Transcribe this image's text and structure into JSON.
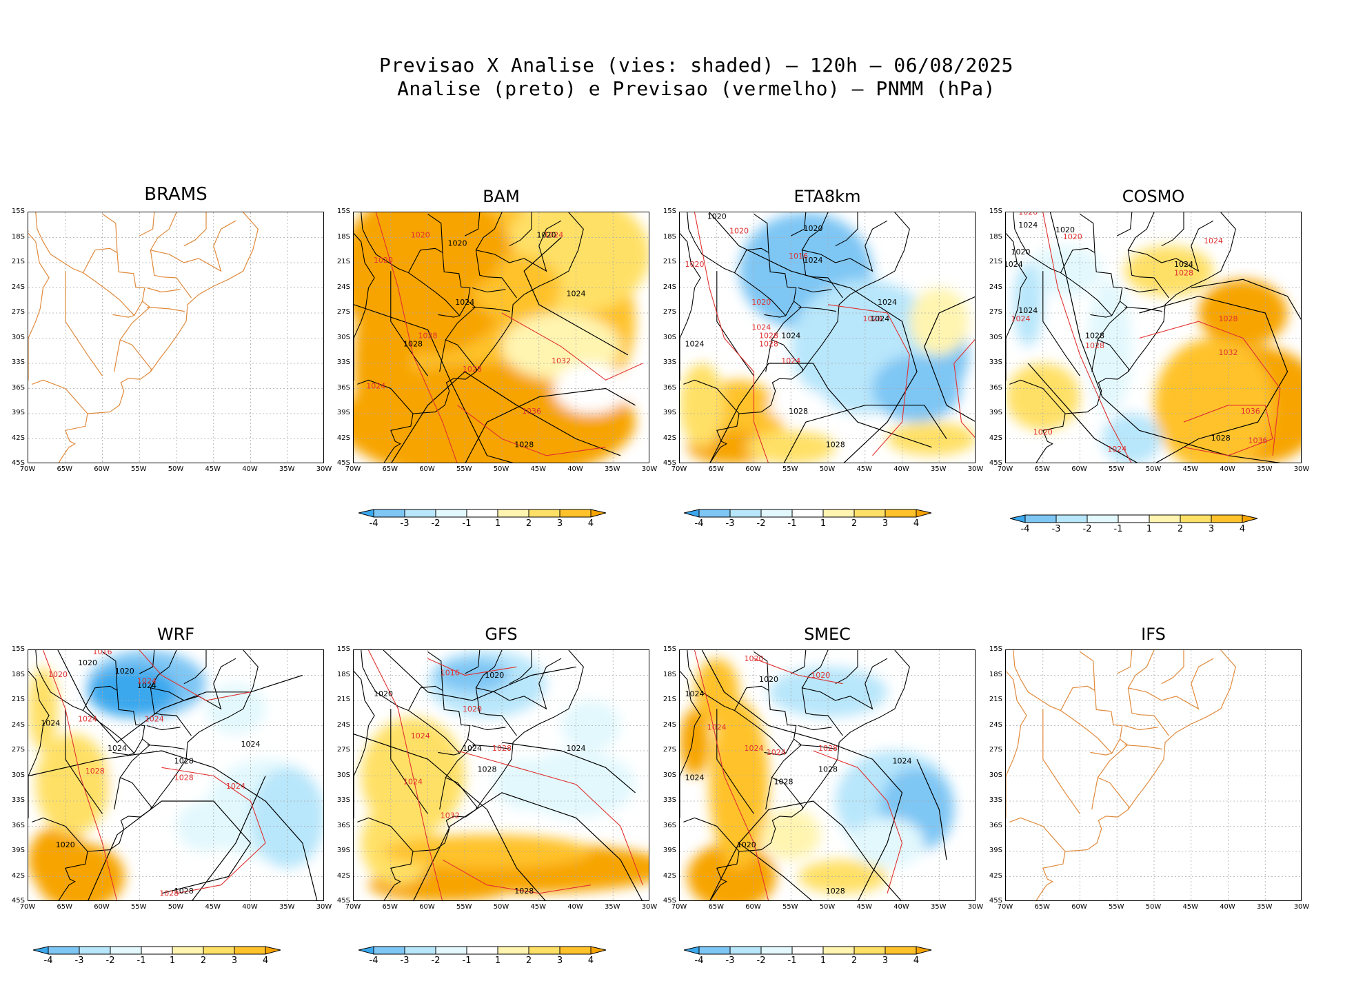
{
  "header": {
    "line1": "Previsao X Analise (vies: shaded) – 120h – 06/08/2025",
    "line2": "Analise (preto) e Previsao (vermelho) – PNMM (hPa)"
  },
  "axes": {
    "lat_labels": [
      "15S",
      "18S",
      "21S",
      "24S",
      "27S",
      "30S",
      "33S",
      "36S",
      "39S",
      "42S",
      "45S"
    ],
    "lon_labels": [
      "70W",
      "65W",
      "60W",
      "55W",
      "50W",
      "45W",
      "40W",
      "35W",
      "30W"
    ]
  },
  "colorbar": {
    "labels": [
      "-4",
      "-3",
      "-2",
      "-1",
      "1",
      "2",
      "3",
      "4"
    ],
    "colors": [
      "#3aa8ee",
      "#7ec6f4",
      "#b8e6fb",
      "#e2f8fd",
      "#ffffff",
      "#fff4b0",
      "#ffe066",
      "#ffc22a",
      "#f7a400"
    ]
  },
  "colors": {
    "coast": "#e08a3c",
    "analysis": "#000000",
    "forecast": "#e03030",
    "grid": "#aaaaaa"
  },
  "panels": [
    {
      "name": "BRAMS",
      "has_data": false,
      "contours": []
    },
    {
      "name": "BAM",
      "has_data": true,
      "contours": [
        {
          "label": "1020",
          "kind": "a"
        },
        {
          "label": "1024",
          "kind": "a"
        },
        {
          "label": "1028",
          "kind": "a"
        },
        {
          "label": "1024",
          "kind": "a"
        },
        {
          "label": "1028",
          "kind": "f"
        },
        {
          "label": "1032",
          "kind": "f"
        },
        {
          "label": "1036",
          "kind": "f"
        },
        {
          "label": "1028",
          "kind": "a"
        },
        {
          "label": "1020",
          "kind": "f"
        },
        {
          "label": "1020",
          "kind": "f"
        },
        {
          "label": "1024",
          "kind": "f"
        },
        {
          "label": "1028",
          "kind": "f"
        },
        {
          "label": "1024",
          "kind": "f"
        },
        {
          "label": "1020",
          "kind": "a"
        }
      ]
    },
    {
      "name": "ETA8km",
      "has_data": true,
      "contours": [
        {
          "label": "1020",
          "kind": "a"
        },
        {
          "label": "1020",
          "kind": "a"
        },
        {
          "label": "1020",
          "kind": "f"
        },
        {
          "label": "1020",
          "kind": "f"
        },
        {
          "label": "1024",
          "kind": "a"
        },
        {
          "label": "1016",
          "kind": "f"
        },
        {
          "label": "1024",
          "kind": "a"
        },
        {
          "label": "1024",
          "kind": "f"
        },
        {
          "label": "1020",
          "kind": "f"
        },
        {
          "label": "1024",
          "kind": "a"
        },
        {
          "label": "1028",
          "kind": "a"
        },
        {
          "label": "1028",
          "kind": "f"
        },
        {
          "label": "1024",
          "kind": "f"
        },
        {
          "label": "1024",
          "kind": "a"
        },
        {
          "label": "1028",
          "kind": "a"
        },
        {
          "label": "1020",
          "kind": "f"
        },
        {
          "label": "1024",
          "kind": "a"
        },
        {
          "label": "1028",
          "kind": "f"
        }
      ]
    },
    {
      "name": "COSMO",
      "has_data": true,
      "contours": [
        {
          "label": "1020",
          "kind": "f"
        },
        {
          "label": "1024",
          "kind": "a"
        },
        {
          "label": "1020",
          "kind": "a"
        },
        {
          "label": "1020",
          "kind": "f"
        },
        {
          "label": "1024",
          "kind": "f"
        },
        {
          "label": "1024",
          "kind": "a"
        },
        {
          "label": "1028",
          "kind": "f"
        },
        {
          "label": "1024",
          "kind": "a"
        },
        {
          "label": "1028",
          "kind": "a"
        },
        {
          "label": "1028",
          "kind": "f"
        },
        {
          "label": "1032",
          "kind": "f"
        },
        {
          "label": "1036",
          "kind": "f"
        },
        {
          "label": "1028",
          "kind": "a"
        },
        {
          "label": "1036",
          "kind": "f"
        },
        {
          "label": "1020",
          "kind": "f"
        },
        {
          "label": "1024",
          "kind": "f"
        },
        {
          "label": "1024",
          "kind": "f"
        },
        {
          "label": "1020",
          "kind": "a"
        },
        {
          "label": "1024",
          "kind": "a"
        },
        {
          "label": "1028",
          "kind": "f"
        }
      ]
    },
    {
      "name": "WRF",
      "has_data": true,
      "contours": [
        {
          "label": "1016",
          "kind": "f"
        },
        {
          "label": "1020",
          "kind": "a"
        },
        {
          "label": "1020",
          "kind": "f"
        },
        {
          "label": "1020",
          "kind": "a"
        },
        {
          "label": "1024",
          "kind": "a"
        },
        {
          "label": "1024",
          "kind": "f"
        },
        {
          "label": "1024",
          "kind": "a"
        },
        {
          "label": "1024",
          "kind": "f"
        },
        {
          "label": "1024",
          "kind": "a"
        },
        {
          "label": "1028",
          "kind": "a"
        },
        {
          "label": "1028",
          "kind": "f"
        },
        {
          "label": "1028",
          "kind": "f"
        },
        {
          "label": "1024",
          "kind": "f"
        },
        {
          "label": "1024",
          "kind": "f"
        },
        {
          "label": "1020",
          "kind": "a"
        },
        {
          "label": "1028",
          "kind": "a"
        },
        {
          "label": "1028",
          "kind": "f"
        },
        {
          "label": "1024",
          "kind": "a"
        }
      ]
    },
    {
      "name": "GFS",
      "has_data": true,
      "contours": [
        {
          "label": "1020",
          "kind": "a"
        },
        {
          "label": "1016",
          "kind": "f"
        },
        {
          "label": "1020",
          "kind": "a"
        },
        {
          "label": "1020",
          "kind": "f"
        },
        {
          "label": "1024",
          "kind": "f"
        },
        {
          "label": "1024",
          "kind": "a"
        },
        {
          "label": "1028",
          "kind": "a"
        },
        {
          "label": "1028",
          "kind": "f"
        },
        {
          "label": "1024",
          "kind": "a"
        },
        {
          "label": "1024",
          "kind": "f"
        },
        {
          "label": "1032",
          "kind": "f"
        },
        {
          "label": "1028",
          "kind": "a"
        }
      ]
    },
    {
      "name": "SMEC",
      "has_data": true,
      "contours": [
        {
          "label": "1020",
          "kind": "f"
        },
        {
          "label": "1020",
          "kind": "a"
        },
        {
          "label": "1020",
          "kind": "f"
        },
        {
          "label": "1024",
          "kind": "a"
        },
        {
          "label": "1024",
          "kind": "f"
        },
        {
          "label": "1024",
          "kind": "f"
        },
        {
          "label": "1024",
          "kind": "a"
        },
        {
          "label": "1028",
          "kind": "a"
        },
        {
          "label": "1028",
          "kind": "f"
        },
        {
          "label": "1024",
          "kind": "a"
        },
        {
          "label": "1028",
          "kind": "a"
        },
        {
          "label": "1020",
          "kind": "a"
        },
        {
          "label": "1028",
          "kind": "a"
        },
        {
          "label": "1024",
          "kind": "f"
        }
      ]
    },
    {
      "name": "IFS",
      "has_data": false,
      "contours": []
    }
  ]
}
